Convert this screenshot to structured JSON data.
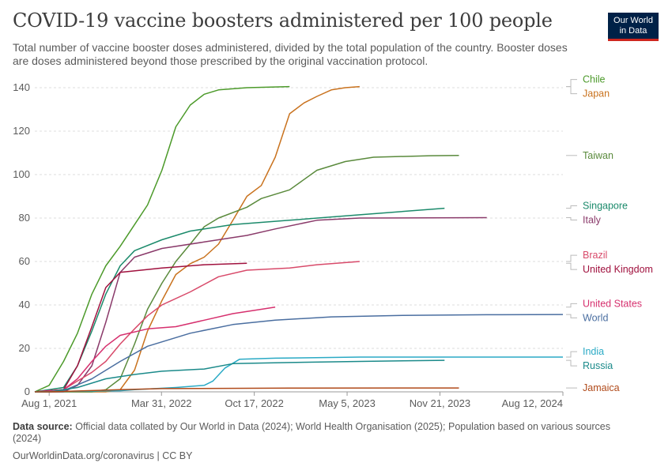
{
  "header": {
    "title": "COVID-19 vaccine boosters administered per 100 people",
    "subtitle": "Total number of vaccine booster doses administered, divided by the total population of the country. Booster doses are doses administered beyond those prescribed by the original vaccination protocol.",
    "logo_line1": "Our World",
    "logo_line2": "in Data"
  },
  "footer": {
    "source_label": "Data source:",
    "source_text": "Official data collated by Our World in Data (2024); World Health Organisation (2025); Population based on various sources (2024)",
    "url": "OurWorldinData.org/coronavirus | CC BY"
  },
  "chart_data": {
    "type": "line",
    "title": "COVID-19 vaccine boosters administered per 100 people",
    "xlabel": "",
    "ylabel": "",
    "ylim": [
      0,
      140
    ],
    "xlim": [
      "2021-07-01",
      "2024-08-12"
    ],
    "y_ticks": [
      0,
      20,
      40,
      60,
      80,
      100,
      120,
      140
    ],
    "x_ticks": [
      "2021-08-01",
      "2022-03-31",
      "2022-10-17",
      "2023-05-05",
      "2023-11-21",
      "2024-08-12"
    ],
    "x_tick_labels": [
      "Aug 1, 2021",
      "Mar 31, 2022",
      "Oct 17, 2022",
      "May 5, 2023",
      "Nov 21, 2023",
      "Aug 12, 2024"
    ],
    "grid": "horizontal dashed",
    "legend": "right, line-end labels",
    "series": [
      {
        "name": "Chile",
        "color": "#4c9a2a",
        "points": [
          [
            "2021-07-01",
            0
          ],
          [
            "2021-08-01",
            3
          ],
          [
            "2021-09-01",
            14
          ],
          [
            "2021-10-01",
            27
          ],
          [
            "2021-11-01",
            45
          ],
          [
            "2021-12-01",
            58
          ],
          [
            "2022-01-01",
            67
          ],
          [
            "2022-02-01",
            77
          ],
          [
            "2022-03-01",
            86
          ],
          [
            "2022-04-01",
            102
          ],
          [
            "2022-05-01",
            122
          ],
          [
            "2022-06-01",
            132
          ],
          [
            "2022-07-01",
            137
          ],
          [
            "2022-08-01",
            139
          ],
          [
            "2022-10-01",
            140
          ],
          [
            "2023-01-01",
            140.5
          ]
        ]
      },
      {
        "name": "Japan",
        "color": "#c9721e",
        "points": [
          [
            "2021-07-01",
            0
          ],
          [
            "2021-12-01",
            0
          ],
          [
            "2022-01-01",
            1
          ],
          [
            "2022-02-01",
            10
          ],
          [
            "2022-03-01",
            28
          ],
          [
            "2022-04-01",
            42
          ],
          [
            "2022-05-01",
            54
          ],
          [
            "2022-06-01",
            59
          ],
          [
            "2022-07-01",
            62
          ],
          [
            "2022-08-01",
            68
          ],
          [
            "2022-09-01",
            79
          ],
          [
            "2022-10-01",
            90
          ],
          [
            "2022-11-01",
            95
          ],
          [
            "2022-12-01",
            108
          ],
          [
            "2023-01-01",
            128
          ],
          [
            "2023-02-01",
            133
          ],
          [
            "2023-03-01",
            136
          ],
          [
            "2023-04-01",
            139
          ],
          [
            "2023-05-01",
            140
          ],
          [
            "2023-06-01",
            140.5
          ]
        ]
      },
      {
        "name": "Taiwan",
        "color": "#5a8a3c",
        "points": [
          [
            "2021-07-01",
            0
          ],
          [
            "2021-11-01",
            0
          ],
          [
            "2021-12-01",
            1
          ],
          [
            "2022-01-01",
            6
          ],
          [
            "2022-02-01",
            22
          ],
          [
            "2022-03-01",
            38
          ],
          [
            "2022-04-01",
            50
          ],
          [
            "2022-05-01",
            60
          ],
          [
            "2022-06-01",
            68
          ],
          [
            "2022-07-01",
            76
          ],
          [
            "2022-08-01",
            80
          ],
          [
            "2022-10-01",
            85
          ],
          [
            "2022-11-01",
            89
          ],
          [
            "2023-01-01",
            93
          ],
          [
            "2023-03-01",
            102
          ],
          [
            "2023-05-01",
            106
          ],
          [
            "2023-07-01",
            108
          ],
          [
            "2023-11-01",
            108.7
          ],
          [
            "2024-01-01",
            108.8
          ]
        ]
      },
      {
        "name": "Singapore",
        "color": "#1b8a6b",
        "points": [
          [
            "2021-07-01",
            0
          ],
          [
            "2021-09-01",
            2
          ],
          [
            "2021-10-01",
            12
          ],
          [
            "2021-11-01",
            28
          ],
          [
            "2021-12-01",
            45
          ],
          [
            "2022-01-01",
            58
          ],
          [
            "2022-02-01",
            65
          ],
          [
            "2022-04-01",
            70
          ],
          [
            "2022-06-01",
            74
          ],
          [
            "2022-09-01",
            77
          ],
          [
            "2023-01-01",
            79
          ],
          [
            "2023-06-01",
            81.5
          ],
          [
            "2023-12-01",
            84.5
          ]
        ]
      },
      {
        "name": "Italy",
        "color": "#8a3a6a",
        "points": [
          [
            "2021-07-01",
            0
          ],
          [
            "2021-09-01",
            0
          ],
          [
            "2021-10-01",
            3
          ],
          [
            "2021-11-01",
            12
          ],
          [
            "2021-12-01",
            32
          ],
          [
            "2022-01-01",
            55
          ],
          [
            "2022-02-01",
            62
          ],
          [
            "2022-04-01",
            66
          ],
          [
            "2022-07-01",
            69
          ],
          [
            "2022-10-01",
            72
          ],
          [
            "2022-12-01",
            75
          ],
          [
            "2023-03-01",
            79
          ],
          [
            "2023-06-01",
            80
          ],
          [
            "2024-03-01",
            80.2
          ]
        ]
      },
      {
        "name": "Brazil",
        "color": "#d84a6a",
        "points": [
          [
            "2021-07-01",
            0
          ],
          [
            "2021-09-01",
            1
          ],
          [
            "2021-10-01",
            5
          ],
          [
            "2021-11-01",
            9
          ],
          [
            "2021-12-01",
            14
          ],
          [
            "2022-01-01",
            22
          ],
          [
            "2022-02-01",
            29
          ],
          [
            "2022-03-01",
            35
          ],
          [
            "2022-04-01",
            40
          ],
          [
            "2022-06-01",
            46
          ],
          [
            "2022-08-01",
            53
          ],
          [
            "2022-10-01",
            56
          ],
          [
            "2023-01-01",
            57
          ],
          [
            "2023-03-01",
            58.5
          ],
          [
            "2023-06-01",
            60
          ]
        ]
      },
      {
        "name": "United Kingdom",
        "color": "#a0113e",
        "points": [
          [
            "2021-07-01",
            0
          ],
          [
            "2021-09-01",
            1
          ],
          [
            "2021-10-01",
            12
          ],
          [
            "2021-11-01",
            30
          ],
          [
            "2021-12-01",
            48
          ],
          [
            "2022-01-01",
            55
          ],
          [
            "2022-04-01",
            57
          ],
          [
            "2022-07-01",
            58.5
          ],
          [
            "2022-10-01",
            59.2
          ]
        ]
      },
      {
        "name": "United States",
        "color": "#d6306e",
        "points": [
          [
            "2021-07-01",
            0
          ],
          [
            "2021-09-01",
            1
          ],
          [
            "2021-10-01",
            6
          ],
          [
            "2021-11-01",
            14
          ],
          [
            "2021-12-01",
            21
          ],
          [
            "2022-01-01",
            26
          ],
          [
            "2022-03-01",
            29
          ],
          [
            "2022-05-01",
            30
          ],
          [
            "2022-07-01",
            33
          ],
          [
            "2022-09-01",
            36
          ],
          [
            "2022-11-01",
            38
          ],
          [
            "2022-12-01",
            39
          ]
        ]
      },
      {
        "name": "World",
        "color": "#4a6ea0",
        "points": [
          [
            "2021-07-01",
            0
          ],
          [
            "2021-08-01",
            0
          ],
          [
            "2021-09-01",
            0.5
          ],
          [
            "2021-11-01",
            6
          ],
          [
            "2022-01-01",
            14
          ],
          [
            "2022-03-01",
            21
          ],
          [
            "2022-06-01",
            27
          ],
          [
            "2022-09-01",
            31
          ],
          [
            "2022-12-01",
            33
          ],
          [
            "2023-04-01",
            34.5
          ],
          [
            "2023-09-01",
            35.2
          ],
          [
            "2024-03-01",
            35.5
          ],
          [
            "2024-08-12",
            35.6
          ]
        ]
      },
      {
        "name": "India",
        "color": "#2aaac5",
        "points": [
          [
            "2021-07-01",
            0
          ],
          [
            "2022-01-01",
            0.5
          ],
          [
            "2022-02-01",
            1
          ],
          [
            "2022-05-01",
            2
          ],
          [
            "2022-07-01",
            3
          ],
          [
            "2022-07-20",
            5
          ],
          [
            "2022-08-15",
            11
          ],
          [
            "2022-09-15",
            15
          ],
          [
            "2022-12-01",
            15.5
          ],
          [
            "2023-06-01",
            16
          ],
          [
            "2024-08-12",
            16
          ]
        ]
      },
      {
        "name": "Russia",
        "color": "#1b8a8a",
        "points": [
          [
            "2021-07-01",
            0
          ],
          [
            "2021-08-01",
            0
          ],
          [
            "2021-10-01",
            2
          ],
          [
            "2021-12-01",
            6
          ],
          [
            "2022-02-01",
            8
          ],
          [
            "2022-04-01",
            9.5
          ],
          [
            "2022-07-01",
            10.5
          ],
          [
            "2022-09-01",
            13
          ],
          [
            "2023-01-01",
            13.5
          ],
          [
            "2023-06-01",
            14
          ],
          [
            "2023-12-01",
            14.5
          ]
        ]
      },
      {
        "name": "Jamaica",
        "color": "#b04a1a",
        "points": [
          [
            "2021-07-01",
            0
          ],
          [
            "2021-08-01",
            0
          ],
          [
            "2022-01-01",
            1
          ],
          [
            "2022-04-01",
            1.5
          ],
          [
            "2023-01-01",
            1.7
          ],
          [
            "2024-01-01",
            1.8
          ]
        ]
      }
    ]
  }
}
